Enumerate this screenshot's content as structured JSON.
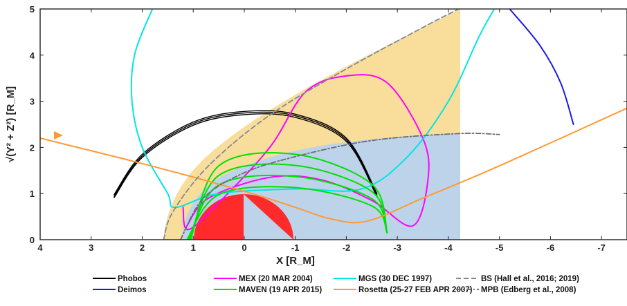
{
  "chart_data": {
    "type": "line",
    "title": "",
    "xlabel": "X [R_M]",
    "ylabel": "√(Y² + Z²) [R_M]",
    "xlim": [
      4,
      -7.5
    ],
    "ylim": [
      0,
      5
    ],
    "x_reversed": true,
    "xticks": [
      4,
      3,
      2,
      1,
      0,
      -1,
      -2,
      -3,
      -4,
      -5,
      -6,
      -7
    ],
    "yticks": [
      0,
      1,
      2,
      3,
      4,
      5
    ],
    "xtick_labels": [
      "4",
      "3",
      "2",
      "1",
      "0",
      "-1",
      "-2",
      "-3",
      "-4",
      "-5",
      "-6",
      "-7"
    ],
    "ytick_labels": [
      "0",
      "1",
      "2",
      "3",
      "4",
      "5"
    ],
    "grid": false,
    "legend_position": "bottom",
    "regions": [
      {
        "name": "magnetosheath",
        "color": "#f9dd9a"
      },
      {
        "name": "induced-magnetosphere",
        "color": "#bcd3ea"
      },
      {
        "name": "mars",
        "color": "#ff2a2a"
      }
    ],
    "series": [
      {
        "name": "Phobos",
        "color": "#000000",
        "style": "solid",
        "type": "arc",
        "points": [
          [
            2.55,
            0.98
          ],
          [
            2.0,
            1.85
          ],
          [
            1.0,
            2.55
          ],
          [
            0.0,
            2.78
          ],
          [
            -1.0,
            2.72
          ],
          [
            -2.0,
            2.2
          ],
          [
            -2.6,
            1.0
          ]
        ]
      },
      {
        "name": "Deimos",
        "color": "#1a1ae6",
        "style": "solid",
        "points": [
          [
            -5.2,
            5.0
          ],
          [
            -5.8,
            4.2
          ],
          [
            -6.2,
            3.4
          ],
          [
            -6.45,
            2.5
          ]
        ]
      },
      {
        "name": "MEX (20 MAR 2004)",
        "color": "#ff00ff",
        "style": "solid",
        "points": [
          [
            1.2,
            0.7
          ],
          [
            1.1,
            0.22
          ],
          [
            0.5,
            0.8
          ],
          [
            -0.5,
            2.0
          ],
          [
            -1.2,
            3.2
          ],
          [
            -2.0,
            3.55
          ],
          [
            -2.8,
            3.4
          ],
          [
            -3.5,
            2.2
          ],
          [
            -3.6,
            1.3
          ],
          [
            -3.3,
            0.3
          ],
          [
            -2.5,
            0.85
          ],
          [
            -1.5,
            1.3
          ],
          [
            -0.5,
            1.35
          ],
          [
            0.7,
            0.9
          ],
          [
            1.15,
            0.25
          ]
        ]
      },
      {
        "name": "MGS (30 DEC 1997)",
        "color": "#00e5e5",
        "style": "solid",
        "points": [
          [
            1.8,
            5.0
          ],
          [
            2.15,
            4.0
          ],
          [
            2.2,
            3.0
          ],
          [
            2.0,
            2.0
          ],
          [
            1.5,
            1.0
          ],
          [
            1.35,
            0.7
          ],
          [
            0.5,
            1.0
          ],
          [
            -1.0,
            1.1
          ],
          [
            -2.3,
            1.1
          ],
          [
            -3.2,
            1.8
          ],
          [
            -4.0,
            3.0
          ],
          [
            -4.6,
            4.4
          ],
          [
            -4.9,
            5.0
          ]
        ]
      },
      {
        "name": "MAVEN (19 APR 2015)",
        "color": "#00e000",
        "style": "solid",
        "type": "loops",
        "points": [
          [
            1.05,
            0.0
          ],
          [
            0.5,
            1.6
          ],
          [
            -1.0,
            1.85
          ],
          [
            -2.5,
            1.2
          ],
          [
            -2.8,
            0.15
          ]
        ]
      },
      {
        "name": "Rosetta (25-27 FEB APR 2007)",
        "color": "#ff9933",
        "style": "solid",
        "points": [
          [
            4.0,
            2.2
          ],
          [
            2.0,
            1.65
          ],
          [
            0.0,
            1.05
          ],
          [
            -1.0,
            0.7
          ],
          [
            -1.7,
            0.45
          ],
          [
            -2.4,
            0.4
          ],
          [
            -3.5,
            0.9
          ],
          [
            -5.0,
            1.6
          ],
          [
            -7.5,
            2.85
          ]
        ]
      },
      {
        "name": "BS (Hall et al., 2016; 2019)",
        "color": "#7f8a99",
        "style": "dashed",
        "points": [
          [
            1.58,
            0.0
          ],
          [
            1.4,
            0.6
          ],
          [
            0.7,
            1.6
          ],
          [
            -0.5,
            2.7
          ],
          [
            -2.0,
            3.7
          ],
          [
            -3.5,
            4.6
          ],
          [
            -4.2,
            5.0
          ]
        ]
      },
      {
        "name": "MPB (Edberg et al., 2008)",
        "color": "#6d6d6d",
        "style": "dashdot",
        "points": [
          [
            1.25,
            0.0
          ],
          [
            0.8,
            0.9
          ],
          [
            0.0,
            1.45
          ],
          [
            -1.0,
            1.8
          ],
          [
            -2.5,
            2.15
          ],
          [
            -4.2,
            2.3
          ],
          [
            -5.0,
            2.28
          ]
        ]
      }
    ],
    "legend": [
      {
        "label": "Phobos",
        "color": "#000000",
        "style": "solid"
      },
      {
        "label": "Deimos",
        "color": "#1a1ae6",
        "style": "solid"
      },
      {
        "label": "MEX (20 MAR 2004)",
        "color": "#ff00ff",
        "style": "solid"
      },
      {
        "label": "MAVEN (19 APR 2015)",
        "color": "#00e000",
        "style": "solid"
      },
      {
        "label": "MGS (30 DEC 1997)",
        "color": "#00e5e5",
        "style": "solid"
      },
      {
        "label": "Rosetta (25-27 FEB APR 2007)",
        "color": "#ff9933",
        "style": "solid"
      },
      {
        "label": "BS (Hall et al., 2016; 2019)",
        "color": "#7f8a99",
        "style": "dashed"
      },
      {
        "label": "MPB (Edberg et al., 2008)",
        "color": "#6d6d6d",
        "style": "dashdot"
      }
    ]
  }
}
